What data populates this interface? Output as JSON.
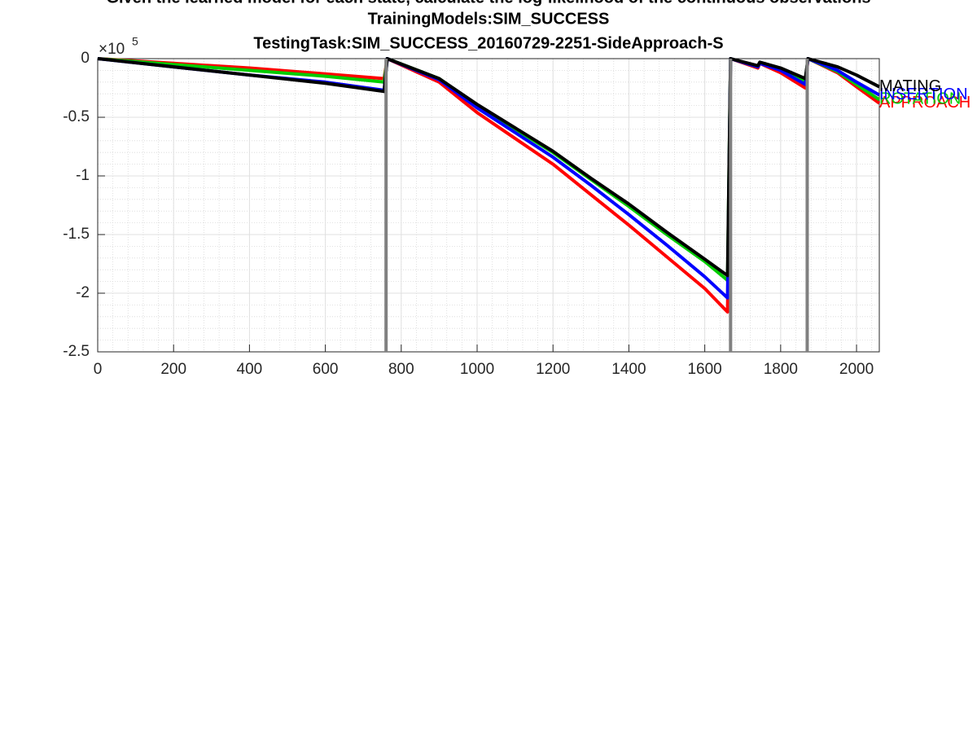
{
  "chart_data": {
    "type": "line",
    "title": [
      "Given the learned model for each state, calculate the log-likelihood of the continuous observations",
      "TrainingModels:SIM_SUCCESS",
      "TestingTask:SIM_SUCCESS_20160729-2251-SideApproach-S"
    ],
    "y_multiplier": {
      "base": "×10",
      "exponent": "5"
    },
    "x": [
      0,
      200,
      400,
      600,
      755,
      763,
      900,
      1000,
      1100,
      1200,
      1300,
      1400,
      1500,
      1600,
      1660,
      1668,
      1740,
      1745,
      1800,
      1865,
      1872,
      1950,
      2000,
      2060
    ],
    "series": [
      {
        "name": "APPROACH",
        "color": "#ff0000",
        "values": [
          0,
          -0.04,
          -0.08,
          -0.13,
          -0.17,
          0,
          -0.2,
          -0.46,
          -0.68,
          -0.9,
          -1.16,
          -1.42,
          -1.69,
          -1.96,
          -2.16,
          0,
          -0.08,
          -0.04,
          -0.12,
          -0.25,
          0,
          -0.12,
          -0.24,
          -0.38
        ]
      },
      {
        "name": "ROTATION",
        "color": "#00cc00",
        "values": [
          0,
          -0.05,
          -0.1,
          -0.15,
          -0.2,
          0,
          -0.17,
          -0.4,
          -0.6,
          -0.8,
          -1.03,
          -1.26,
          -1.5,
          -1.73,
          -1.89,
          0,
          -0.07,
          -0.04,
          -0.09,
          -0.19,
          0,
          -0.11,
          -0.22,
          -0.35
        ]
      },
      {
        "name": "INSERTION",
        "color": "#0000ff",
        "values": [
          0,
          -0.07,
          -0.14,
          -0.2,
          -0.27,
          0,
          -0.18,
          -0.42,
          -0.63,
          -0.84,
          -1.08,
          -1.33,
          -1.59,
          -1.86,
          -2.04,
          0,
          -0.07,
          -0.04,
          -0.1,
          -0.22,
          0,
          -0.1,
          -0.2,
          -0.31
        ]
      },
      {
        "name": "MATING",
        "color": "#000000",
        "values": [
          0,
          -0.07,
          -0.14,
          -0.21,
          -0.28,
          0,
          -0.17,
          -0.39,
          -0.59,
          -0.79,
          -1.02,
          -1.24,
          -1.48,
          -1.71,
          -1.85,
          0,
          -0.06,
          -0.03,
          -0.08,
          -0.17,
          0,
          -0.07,
          -0.14,
          -0.24
        ]
      }
    ],
    "vertical_lines": {
      "x": [
        760,
        1668,
        1870
      ],
      "color": "#808080"
    },
    "xlim": [
      0,
      2060
    ],
    "ylim": [
      -2.5,
      0
    ],
    "xticks": [
      0,
      200,
      400,
      600,
      800,
      1000,
      1200,
      1400,
      1600,
      1800,
      2000
    ],
    "yticks": [
      0,
      -0.5,
      -1,
      -1.5,
      -2,
      -2.5
    ],
    "grid": true,
    "minor_grid": true
  }
}
